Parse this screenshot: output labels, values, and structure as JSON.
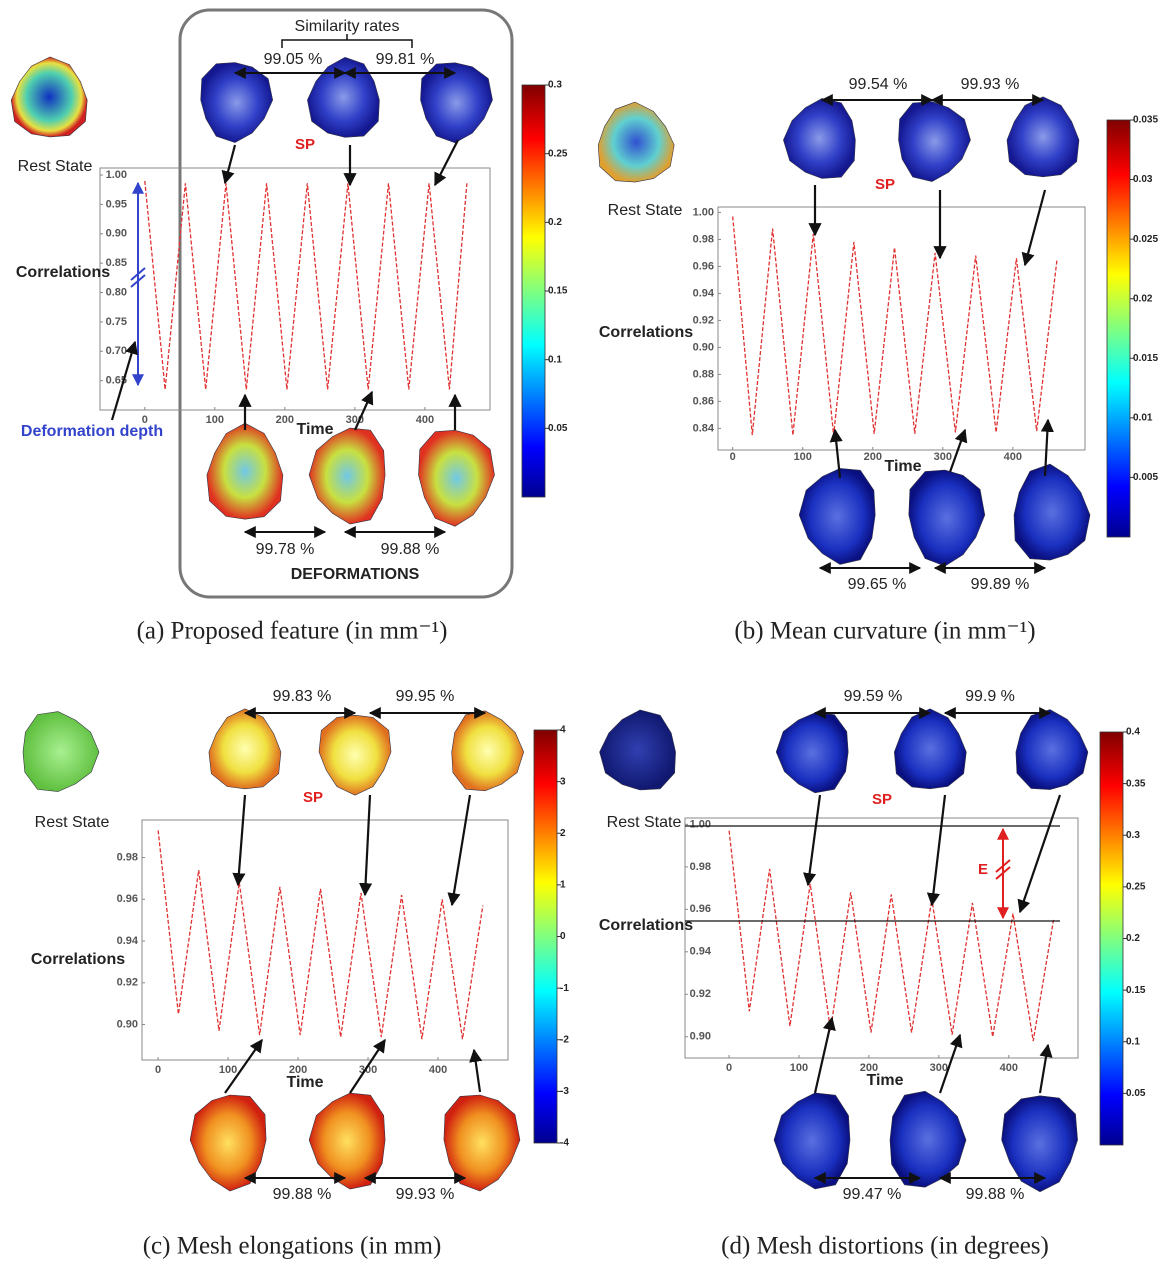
{
  "chart_data": [
    {
      "type": "line",
      "caption": "(a) Proposed feature (in mm⁻¹)",
      "title": "Similarity rates",
      "group_label": "DEFORMATIONS",
      "depth_label": "Deformation depth",
      "rest_label": "Rest State",
      "annotation": "SP",
      "ylabel": "Correlations",
      "xlabel": "Time",
      "top_rates": [
        "99.05 %",
        "99.81 %"
      ],
      "bottom_rates": [
        "99.78 %",
        "99.88 %"
      ],
      "x": [
        0,
        29,
        58,
        87,
        116,
        145,
        174,
        203,
        232,
        261,
        290,
        319,
        348,
        377,
        406,
        435,
        460
      ],
      "values": [
        0.99,
        0.635,
        0.986,
        0.635,
        0.986,
        0.635,
        0.986,
        0.635,
        0.986,
        0.635,
        0.986,
        0.635,
        0.986,
        0.635,
        0.986,
        0.635,
        0.986
      ],
      "color": "#e03030",
      "xlim": [
        -64,
        493
      ],
      "ylim": [
        0.6,
        1.012
      ],
      "xticks": [
        0,
        100,
        200,
        300,
        400
      ],
      "yticks": [
        {
          "value": 1.0,
          "label": "1.00"
        },
        0.95,
        {
          "value": 0.9,
          "label": "0.90"
        },
        0.85,
        {
          "value": 0.8,
          "label": "0.80"
        },
        0.75,
        {
          "value": 0.7,
          "label": "0.70"
        },
        0.65
      ],
      "colorbar": {
        "lim": [
          0,
          0.3
        ],
        "ticks": [
          0.3,
          0.25,
          0.2,
          0.15,
          0.1,
          0.05
        ]
      }
    },
    {
      "type": "line",
      "caption": "(b) Mean curvature (in mm⁻¹)",
      "rest_label": "Rest State",
      "annotation": "SP",
      "ylabel": "Correlations",
      "xlabel": "Time",
      "top_rates": [
        "99.54 %",
        "99.93 %"
      ],
      "bottom_rates": [
        "99.65 %",
        "99.89 %"
      ],
      "x": [
        0,
        28,
        57,
        86,
        115,
        144,
        173,
        202,
        231,
        260,
        289,
        318,
        347,
        376,
        405,
        434,
        463
      ],
      "values": [
        0.997,
        0.835,
        0.988,
        0.835,
        0.984,
        0.835,
        0.978,
        0.836,
        0.974,
        0.836,
        0.97,
        0.837,
        0.968,
        0.837,
        0.966,
        0.838,
        0.965
      ],
      "color": "#e03030",
      "xlim": [
        -21,
        503
      ],
      "ylim": [
        0.824,
        1.004
      ],
      "xticks": [
        0,
        100,
        200,
        300,
        400
      ],
      "yticks": [
        {
          "value": 1.0,
          "label": "1.00"
        },
        0.98,
        0.96,
        0.94,
        0.92,
        {
          "value": 0.9,
          "label": "0.90"
        },
        0.88,
        0.86,
        0.84
      ],
      "colorbar": {
        "lim": [
          0,
          0.035
        ],
        "ticks": [
          0.035,
          0.03,
          0.025,
          0.02,
          0.015,
          0.01,
          0.005
        ]
      }
    },
    {
      "type": "line",
      "caption": "(c) Mesh elongations (in mm)",
      "rest_label": "Rest State",
      "annotation": "SP",
      "ylabel": "Correlations",
      "xlabel": "Time",
      "top_rates": [
        "99.83 %",
        "99.95 %"
      ],
      "bottom_rates": [
        "99.88 %",
        "99.93 %"
      ],
      "x": [
        0,
        29,
        58,
        87,
        116,
        145,
        174,
        203,
        232,
        261,
        290,
        319,
        348,
        377,
        406,
        435,
        464
      ],
      "values": [
        0.993,
        0.905,
        0.974,
        0.897,
        0.968,
        0.895,
        0.966,
        0.895,
        0.965,
        0.894,
        0.963,
        0.894,
        0.962,
        0.893,
        0.96,
        0.893,
        0.957
      ],
      "color": "#e03030",
      "xlim": [
        -23,
        500
      ],
      "ylim": [
        0.883,
        0.998
      ],
      "xticks": [
        0,
        100,
        200,
        300,
        400
      ],
      "yticks": [
        0.98,
        0.96,
        0.94,
        0.92,
        {
          "value": 0.9,
          "label": "0.90"
        }
      ],
      "colorbar": {
        "lim": [
          -4,
          4
        ],
        "ticks": [
          4,
          3,
          2,
          1,
          0,
          -1,
          -2,
          -3,
          -4
        ]
      }
    },
    {
      "type": "line",
      "caption": "(d) Mesh distortions (in degrees)",
      "gap_label": "E",
      "rest_label": "Rest State",
      "annotation": "SP",
      "ylabel": "Correlations",
      "xlabel": "Time",
      "top_rates": [
        "99.59 %",
        "99.9 %"
      ],
      "bottom_rates": [
        "99.47 %",
        "99.88 %"
      ],
      "x": [
        0,
        29,
        58,
        87,
        116,
        145,
        174,
        203,
        232,
        261,
        290,
        319,
        348,
        377,
        406,
        435,
        464
      ],
      "values": [
        0.997,
        0.912,
        0.979,
        0.905,
        0.972,
        0.903,
        0.968,
        0.902,
        0.967,
        0.902,
        0.965,
        0.901,
        0.963,
        0.9,
        0.958,
        0.898,
        0.955
      ],
      "color": "#e03030",
      "xlim": [
        -63,
        499
      ],
      "ylim": [
        0.89,
        1.003
      ],
      "xticks": [
        0,
        100,
        200,
        300,
        400
      ],
      "yticks": [
        {
          "value": 1.0,
          "label": "1.00"
        },
        0.98,
        0.96,
        0.94,
        0.92,
        {
          "value": 0.9,
          "label": "0.90"
        }
      ],
      "colorbar": {
        "lim": [
          0,
          0.4
        ],
        "ticks": [
          0.4,
          0.35,
          0.3,
          0.25,
          0.2,
          0.15,
          0.1,
          0.05
        ]
      }
    }
  ]
}
